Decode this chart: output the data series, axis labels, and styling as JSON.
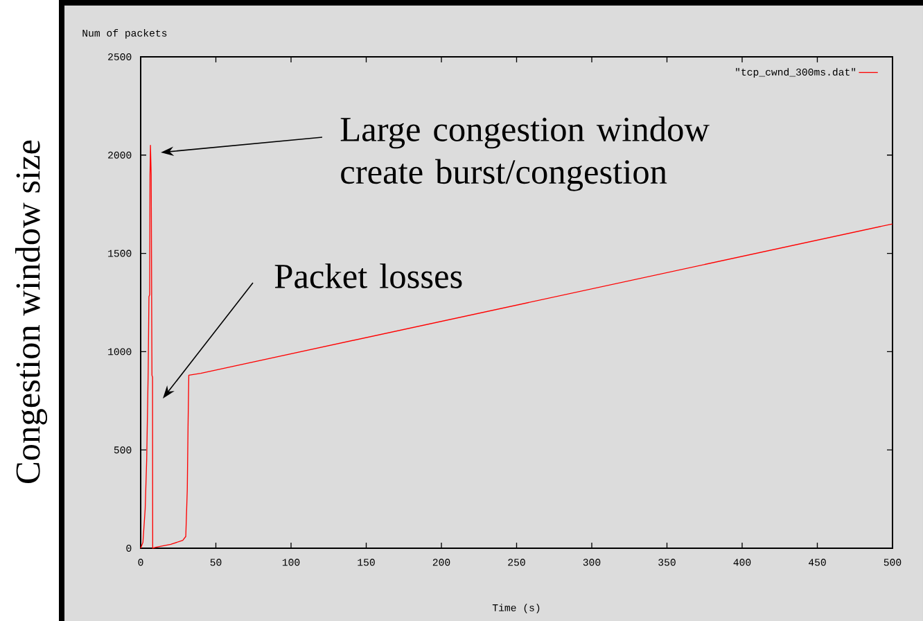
{
  "chart_data": {
    "type": "line",
    "xlabel": "Time (s)",
    "ylabel": "Num of packets",
    "annotations": [
      "Congestion window size",
      "Large congestion window create burst/congestion",
      "Packet losses"
    ],
    "series": [
      {
        "name": "\"tcp_cwnd_300ms.dat\"",
        "color": "#ff0000",
        "x": [
          0,
          1.5,
          3,
          4,
          5,
          5.5,
          6,
          6.2,
          6.5,
          7,
          7.5,
          7.9,
          8,
          10,
          20,
          28,
          30,
          31,
          31.5,
          32,
          40,
          500
        ],
        "values": [
          0,
          30,
          200,
          450,
          900,
          1280,
          1290,
          1900,
          2050,
          1900,
          880,
          870,
          0,
          5,
          20,
          40,
          60,
          300,
          620,
          880,
          890,
          1650
        ]
      }
    ],
    "xlim": [
      0,
      500
    ],
    "xticks": [
      0,
      50,
      100,
      150,
      200,
      250,
      300,
      350,
      400,
      450,
      500
    ],
    "ylim": [
      0,
      2500
    ],
    "yticks": [
      0,
      500,
      1000,
      1500,
      2000,
      2500
    ],
    "grid": false,
    "legend": "top right",
    "marker": "none",
    "line_style": "solid"
  }
}
